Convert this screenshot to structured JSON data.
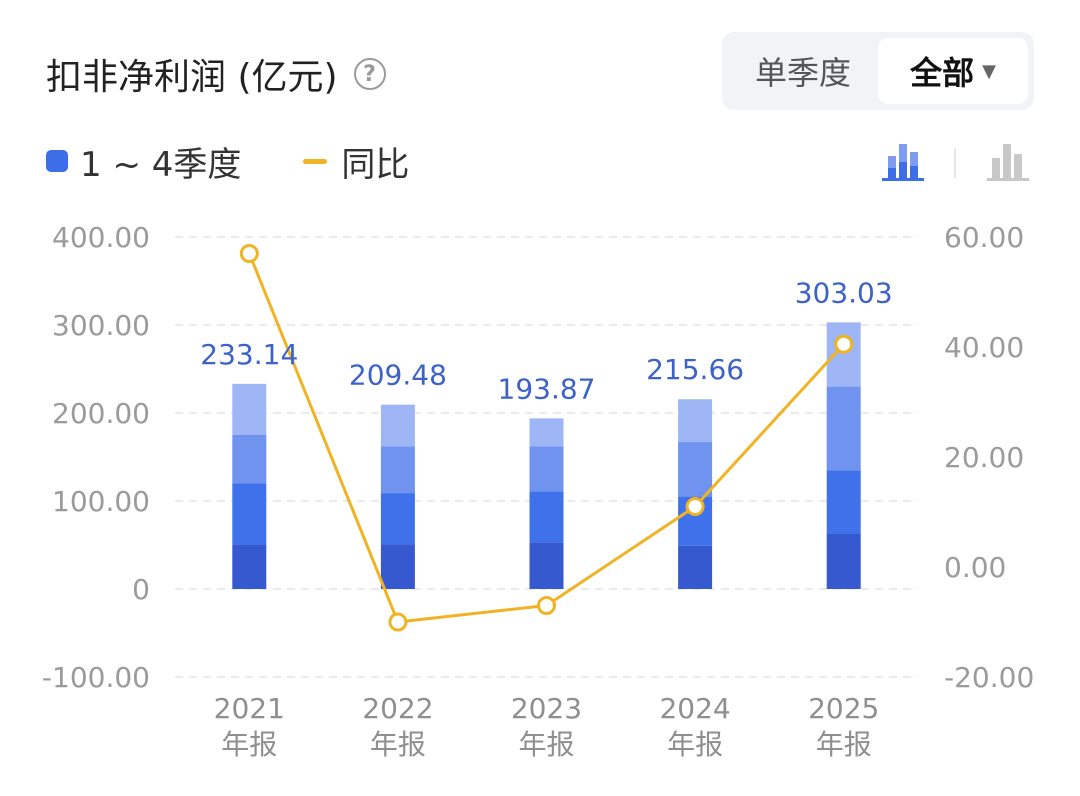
{
  "header": {
    "title": "扣非净利润 (亿元)",
    "help_icon": "question-circle-icon"
  },
  "toggle": {
    "single_quarter_label": "单季度",
    "all_label": "全部",
    "dropdown_icon": "caret-down-icon"
  },
  "legend": {
    "bar_label": "1 ~ 4季度",
    "line_label": "同比"
  },
  "view_icons": [
    "stacked-bar-chart-icon",
    "bar-chart-icon"
  ],
  "colors": {
    "q1": "#3659d0",
    "q2": "#3f72ea",
    "q3": "#6f93ef",
    "q4": "#9eb6f6",
    "line": "#f0b323",
    "value_label": "#3d62c8",
    "active_icon": "#3d6ee8",
    "inactive_icon": "#c8c8c8"
  },
  "chart_data": {
    "type": "bar",
    "stacked": true,
    "categories": [
      "2021\n年报",
      "2022\n年报",
      "2023\n年报",
      "2024\n年报",
      "2025\n年报"
    ],
    "series": [
      {
        "name": "1 ~ 4季度",
        "stack": [
          [
            50,
            120,
            175,
            233.14
          ],
          [
            51,
            109,
            162,
            209.48
          ],
          [
            53,
            111,
            162,
            193.87
          ],
          [
            49,
            105,
            167,
            215.66
          ],
          [
            63,
            135,
            230,
            303.03
          ]
        ]
      }
    ],
    "totals": [
      233.14,
      209.48,
      193.87,
      215.66,
      303.03
    ],
    "total_labels": [
      "233.14",
      "209.48",
      "193.87",
      "215.66",
      "303.03"
    ],
    "line": {
      "name": "同比",
      "axis": "right",
      "values": [
        57,
        -10,
        -7,
        11,
        40.5
      ]
    },
    "y_left": {
      "ticks": [
        400,
        300,
        200,
        100,
        0,
        -100
      ],
      "tick_labels": [
        "400.00",
        "300.00",
        "200.00",
        "100.00",
        "0",
        "-100.00"
      ],
      "range": [
        -100,
        400
      ]
    },
    "y_right": {
      "ticks": [
        60,
        40,
        20,
        0,
        -20
      ],
      "tick_labels": [
        "60.00",
        "40.00",
        "20.00",
        "0.00",
        "-20.00"
      ],
      "range": [
        -20,
        60
      ]
    },
    "grid": true
  }
}
